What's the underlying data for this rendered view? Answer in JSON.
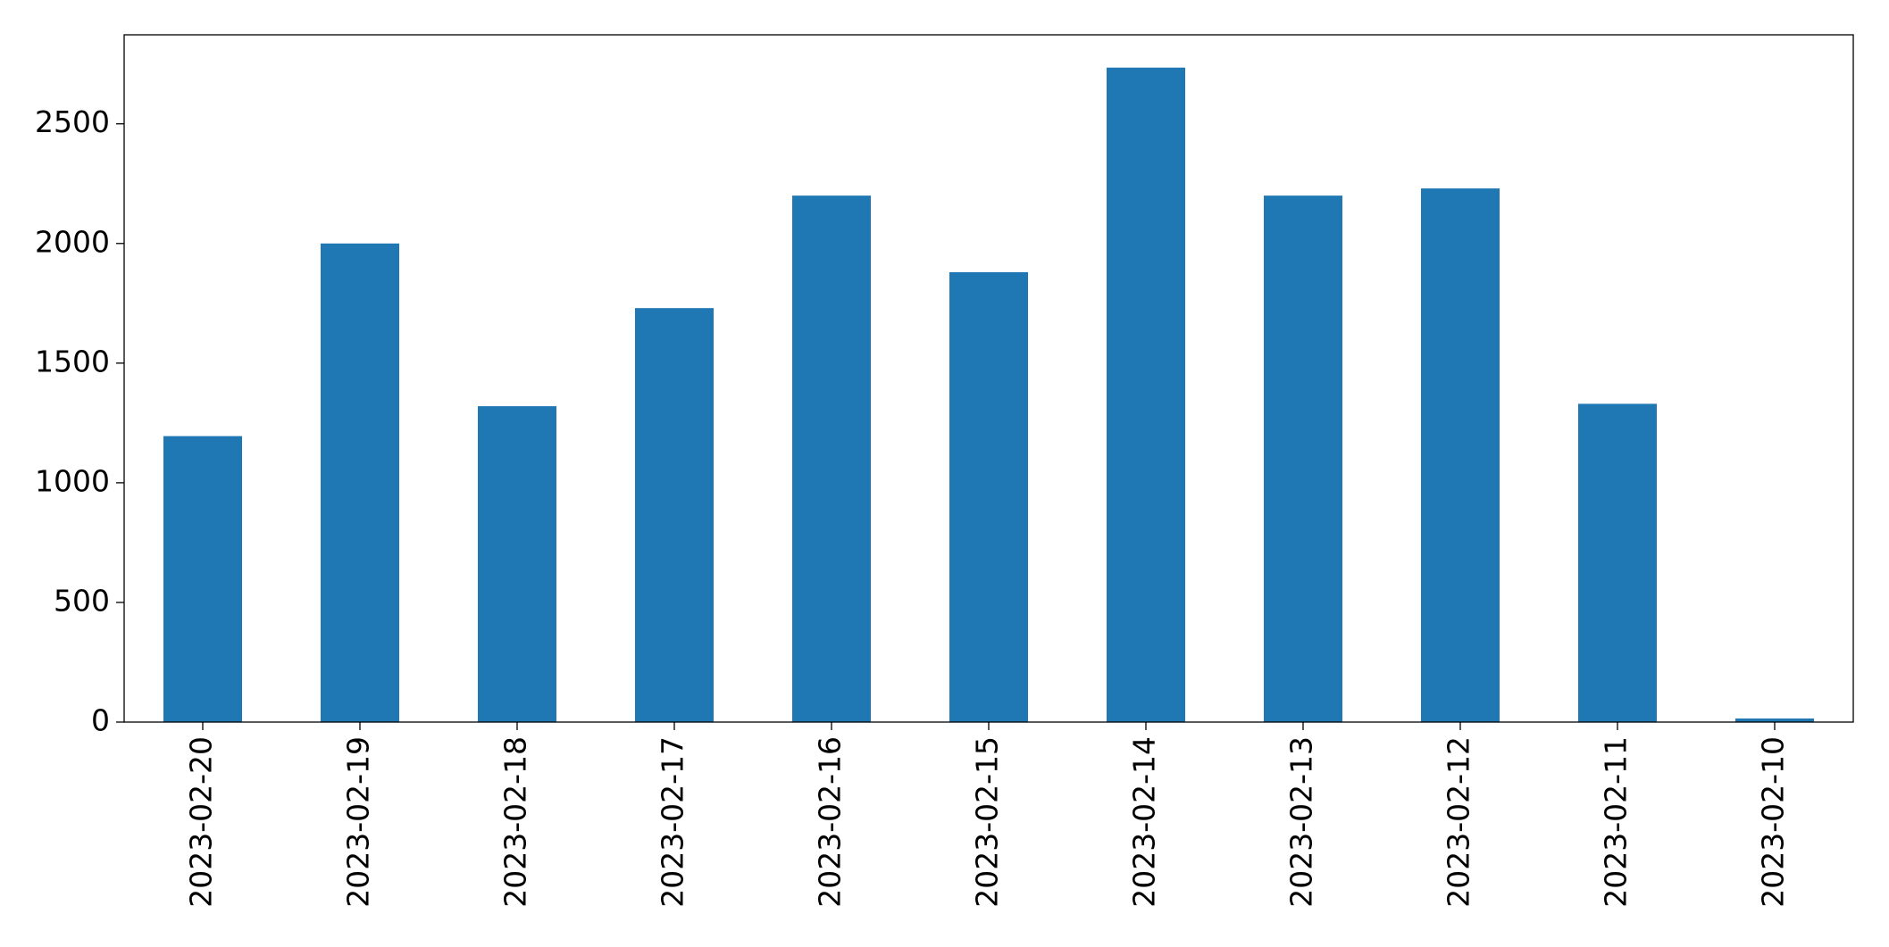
{
  "chart_data": {
    "type": "bar",
    "categories": [
      "2023-02-20",
      "2023-02-19",
      "2023-02-18",
      "2023-02-17",
      "2023-02-16",
      "2023-02-15",
      "2023-02-14",
      "2023-02-13",
      "2023-02-12",
      "2023-02-11",
      "2023-02-10"
    ],
    "values": [
      1195,
      2000,
      1320,
      1730,
      2200,
      1880,
      2735,
      2200,
      2230,
      1330,
      15
    ],
    "color": "#1f77b4",
    "ylim": [
      0,
      2872
    ],
    "yticks": [
      0,
      500,
      1000,
      1500,
      2000,
      2500
    ],
    "grid": false
  }
}
